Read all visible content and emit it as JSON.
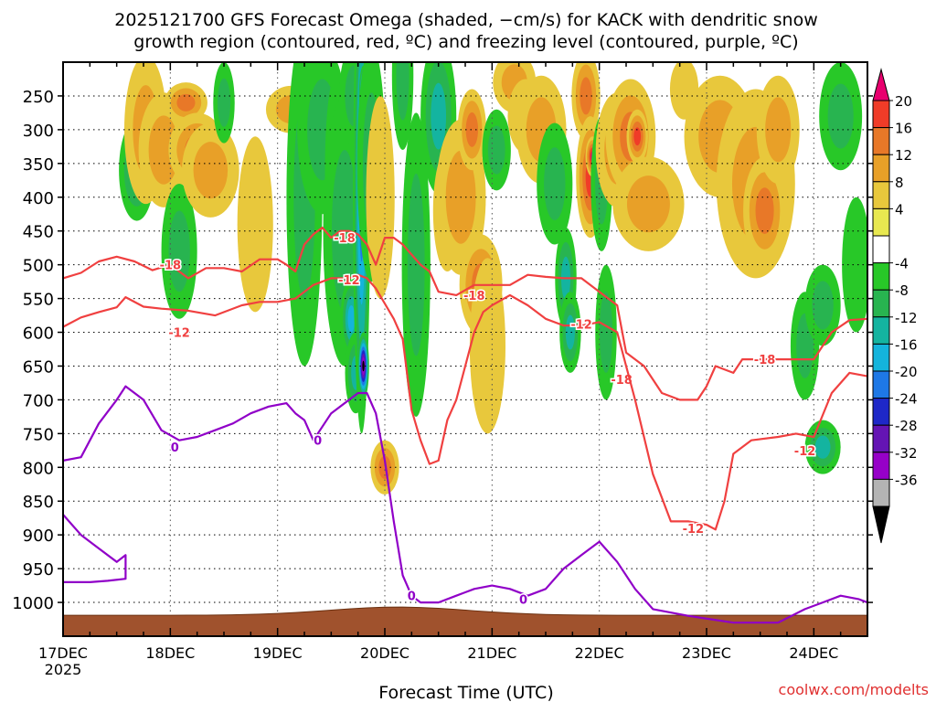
{
  "chart_data": {
    "type": "heatmap",
    "title_line1": "2025121700 GFS Forecast Omega (shaded, −cm/s) for KACK with dendritic snow",
    "title_line2": "growth region (contoured, red, ºC) and freezing level (contoured, purple, ºC)",
    "xlabel": "Forecast Time (UTC)",
    "credit": "coolwx.com/modelts",
    "x_ticks": [
      {
        "hour": 0,
        "label": "17DEC"
      },
      {
        "hour": 24,
        "label": "18DEC"
      },
      {
        "hour": 48,
        "label": "19DEC"
      },
      {
        "hour": 72,
        "label": "20DEC"
      },
      {
        "hour": 96,
        "label": "21DEC"
      },
      {
        "hour": 120,
        "label": "22DEC"
      },
      {
        "hour": 144,
        "label": "23DEC"
      },
      {
        "hour": 168,
        "label": "24DEC"
      }
    ],
    "x_year_label": "2025",
    "xlim": [
      0,
      180
    ],
    "y_levels": [
      250,
      300,
      350,
      400,
      450,
      500,
      550,
      600,
      650,
      700,
      750,
      800,
      850,
      900,
      950,
      1000
    ],
    "ylim": [
      200,
      1050
    ],
    "colorbar": {
      "labels": [
        "20",
        "16",
        "12",
        "8",
        "4",
        "-4",
        "-8",
        "-12",
        "-16",
        "-20",
        "-24",
        "-28",
        "-32",
        "-36"
      ],
      "colors": [
        "#e8006e",
        "#f03c28",
        "#e87828",
        "#e8a028",
        "#e8c83c",
        "#e8e850",
        "#ffffff",
        "#28c828",
        "#28b450",
        "#14b4a0",
        "#14b4dc",
        "#1e78e6",
        "#1e28c8",
        "#6414b4",
        "#9600c8",
        "#b4b4b4",
        "#000000"
      ]
    },
    "omega_blobs": [
      {
        "t": 16.5,
        "p": 360,
        "w": 2.5,
        "h": 150,
        "v": -12
      },
      {
        "t": 18.5,
        "p": 300,
        "w": 3.0,
        "h": 220,
        "v": 8
      },
      {
        "t": 22.5,
        "p": 330,
        "w": 3.5,
        "h": 170,
        "v": 10
      },
      {
        "t": 26,
        "p": 480,
        "w": 2.5,
        "h": 200,
        "v": -8
      },
      {
        "t": 27.5,
        "p": 260,
        "w": 3.0,
        "h": 60,
        "v": 12
      },
      {
        "t": 30,
        "p": 330,
        "w": 4.0,
        "h": 110,
        "v": 14
      },
      {
        "t": 31,
        "p": 350,
        "w": 2.0,
        "h": 60,
        "v": 20
      },
      {
        "t": 33,
        "p": 360,
        "w": 4.0,
        "h": 140,
        "v": 8
      },
      {
        "t": 36,
        "p": 260,
        "w": 1.5,
        "h": 120,
        "v": -8
      },
      {
        "t": 43,
        "p": 440,
        "w": 2.5,
        "h": 260,
        "v": 6
      },
      {
        "t": 51,
        "p": 270,
        "w": 3.5,
        "h": 70,
        "v": 10
      },
      {
        "t": 54,
        "p": 400,
        "w": 2.5,
        "h": 500,
        "v": -8
      },
      {
        "t": 58,
        "p": 300,
        "w": 3.5,
        "h": 250,
        "v": -10
      },
      {
        "t": 61,
        "p": 360,
        "w": 1.5,
        "h": 280,
        "v": -6
      },
      {
        "t": 63,
        "p": 450,
        "w": 3.0,
        "h": 400,
        "v": -10
      },
      {
        "t": 64.5,
        "p": 580,
        "w": 1.5,
        "h": 120,
        "v": -18
      },
      {
        "t": 65,
        "p": 250,
        "w": 2.0,
        "h": 150,
        "v": -8
      },
      {
        "t": 65.5,
        "p": 660,
        "w": 1.5,
        "h": 120,
        "v": -14
      },
      {
        "t": 66.8,
        "p": 400,
        "w": 1.2,
        "h": 700,
        "v": -22
      },
      {
        "t": 67.2,
        "p": 250,
        "w": 0.6,
        "h": 90,
        "v": -36
      },
      {
        "t": 67.2,
        "p": 650,
        "w": 0.8,
        "h": 100,
        "v": -36
      },
      {
        "t": 69,
        "p": 350,
        "w": 2.0,
        "h": 350,
        "v": -10
      },
      {
        "t": 71,
        "p": 400,
        "w": 2.0,
        "h": 300,
        "v": 6
      },
      {
        "t": 72,
        "p": 800,
        "w": 2.0,
        "h": 80,
        "v": 12
      },
      {
        "t": 76,
        "p": 220,
        "w": 1.5,
        "h": 220,
        "v": -10
      },
      {
        "t": 79,
        "p": 500,
        "w": 2.0,
        "h": 450,
        "v": -8
      },
      {
        "t": 84,
        "p": 280,
        "w": 2.5,
        "h": 230,
        "v": -12
      },
      {
        "t": 86,
        "p": 420,
        "w": 2.0,
        "h": 180,
        "v": 6
      },
      {
        "t": 89,
        "p": 400,
        "w": 3.5,
        "h": 230,
        "v": 8
      },
      {
        "t": 91.5,
        "p": 300,
        "w": 2.0,
        "h": 120,
        "v": 12
      },
      {
        "t": 93.5,
        "p": 530,
        "w": 3.0,
        "h": 150,
        "v": 14
      },
      {
        "t": 95,
        "p": 620,
        "w": 2.5,
        "h": 260,
        "v": 6
      },
      {
        "t": 97,
        "p": 330,
        "w": 2.0,
        "h": 120,
        "v": -8
      },
      {
        "t": 101,
        "p": 230,
        "w": 3.0,
        "h": 90,
        "v": 8
      },
      {
        "t": 103.5,
        "p": 280,
        "w": 2.5,
        "h": 110,
        "v": 6
      },
      {
        "t": 107,
        "p": 300,
        "w": 3.5,
        "h": 160,
        "v": 8
      },
      {
        "t": 110,
        "p": 380,
        "w": 2.5,
        "h": 180,
        "v": -8
      },
      {
        "t": 112.5,
        "p": 520,
        "w": 1.5,
        "h": 150,
        "v": -12
      },
      {
        "t": 113.5,
        "p": 600,
        "w": 1.5,
        "h": 120,
        "v": -14
      },
      {
        "t": 117,
        "p": 250,
        "w": 2.0,
        "h": 130,
        "v": 12
      },
      {
        "t": 118,
        "p": 370,
        "w": 2.0,
        "h": 180,
        "v": 16
      },
      {
        "t": 118.5,
        "p": 340,
        "w": 1.0,
        "h": 60,
        "v": 20
      },
      {
        "t": 120.5,
        "p": 380,
        "w": 1.5,
        "h": 200,
        "v": -10
      },
      {
        "t": 121.5,
        "p": 600,
        "w": 1.5,
        "h": 200,
        "v": -8
      },
      {
        "t": 124,
        "p": 330,
        "w": 3.0,
        "h": 170,
        "v": 10
      },
      {
        "t": 127,
        "p": 310,
        "w": 3.5,
        "h": 170,
        "v": 14
      },
      {
        "t": 128.5,
        "p": 310,
        "w": 1.5,
        "h": 80,
        "v": 16
      },
      {
        "t": 131,
        "p": 410,
        "w": 5.0,
        "h": 140,
        "v": 8
      },
      {
        "t": 139,
        "p": 240,
        "w": 2.0,
        "h": 90,
        "v": 4
      },
      {
        "t": 147,
        "p": 310,
        "w": 5.0,
        "h": 180,
        "v": 8
      },
      {
        "t": 155,
        "p": 380,
        "w": 5.5,
        "h": 280,
        "v": 8
      },
      {
        "t": 157,
        "p": 420,
        "w": 3.0,
        "h": 160,
        "v": 12
      },
      {
        "t": 160,
        "p": 300,
        "w": 3.0,
        "h": 160,
        "v": 8
      },
      {
        "t": 166,
        "p": 620,
        "w": 2.0,
        "h": 160,
        "v": -8
      },
      {
        "t": 174,
        "p": 280,
        "w": 3.0,
        "h": 160,
        "v": -8
      },
      {
        "t": 177.5,
        "p": 500,
        "w": 2.0,
        "h": 200,
        "v": -6
      },
      {
        "t": 170,
        "p": 560,
        "w": 2.5,
        "h": 120,
        "v": -10
      },
      {
        "t": 170,
        "p": 770,
        "w": 2.5,
        "h": 80,
        "v": -12
      }
    ],
    "contours": [
      {
        "name": "dgz-18",
        "color": "#f04040",
        "labels": [
          {
            "t": 24,
            "p": 500,
            "text": "-18"
          },
          {
            "t": 63,
            "p": 460,
            "text": "-18"
          },
          {
            "t": 92,
            "p": 545,
            "text": "-18"
          },
          {
            "t": 125,
            "p": 670,
            "text": "-18"
          },
          {
            "t": 157,
            "p": 640,
            "text": "-18"
          }
        ],
        "points": [
          [
            0,
            520
          ],
          [
            4,
            512
          ],
          [
            8,
            495
          ],
          [
            12,
            488
          ],
          [
            16,
            495
          ],
          [
            20,
            508
          ],
          [
            24,
            500
          ],
          [
            28,
            520
          ],
          [
            32,
            505
          ],
          [
            36,
            505
          ],
          [
            40,
            510
          ],
          [
            44,
            492
          ],
          [
            48,
            492
          ],
          [
            50,
            500
          ],
          [
            52,
            510
          ],
          [
            54,
            470
          ],
          [
            56,
            455
          ],
          [
            58,
            445
          ],
          [
            60,
            460
          ],
          [
            62,
            450
          ],
          [
            64,
            450
          ],
          [
            66,
            455
          ],
          [
            68,
            470
          ],
          [
            70,
            500
          ],
          [
            72,
            460
          ],
          [
            74,
            460
          ],
          [
            76,
            470
          ],
          [
            80,
            500
          ],
          [
            82,
            510
          ],
          [
            84,
            540
          ],
          [
            88,
            545
          ],
          [
            92,
            530
          ],
          [
            96,
            530
          ],
          [
            100,
            530
          ],
          [
            104,
            515
          ],
          [
            108,
            518
          ],
          [
            112,
            520
          ],
          [
            116,
            520
          ],
          [
            120,
            540
          ],
          [
            124,
            560
          ],
          [
            126,
            630
          ],
          [
            130,
            650
          ],
          [
            134,
            690
          ],
          [
            138,
            700
          ],
          [
            142,
            700
          ],
          [
            144,
            680
          ],
          [
            146,
            650
          ],
          [
            150,
            660
          ],
          [
            152,
            640
          ],
          [
            156,
            640
          ],
          [
            160,
            640
          ],
          [
            164,
            640
          ],
          [
            168,
            640
          ],
          [
            172,
            600
          ],
          [
            176,
            582
          ],
          [
            180,
            580
          ]
        ]
      },
      {
        "name": "dgz-12",
        "color": "#f04040",
        "labels": [
          {
            "t": 26,
            "p": 600,
            "text": "-12"
          },
          {
            "t": 64,
            "p": 522,
            "text": "-12"
          },
          {
            "t": 116,
            "p": 588,
            "text": "-12"
          },
          {
            "t": 141,
            "p": 890,
            "text": "-12"
          },
          {
            "t": 166,
            "p": 775,
            "text": "-12"
          }
        ],
        "points": [
          [
            0,
            592
          ],
          [
            4,
            578
          ],
          [
            8,
            570
          ],
          [
            12,
            563
          ],
          [
            14,
            548
          ],
          [
            18,
            562
          ],
          [
            22,
            565
          ],
          [
            28,
            568
          ],
          [
            34,
            575
          ],
          [
            40,
            560
          ],
          [
            44,
            555
          ],
          [
            48,
            555
          ],
          [
            52,
            550
          ],
          [
            56,
            530
          ],
          [
            60,
            520
          ],
          [
            64,
            520
          ],
          [
            66,
            515
          ],
          [
            68,
            520
          ],
          [
            70,
            535
          ],
          [
            74,
            580
          ],
          [
            76,
            610
          ],
          [
            78,
            715
          ],
          [
            80,
            760
          ],
          [
            82,
            795
          ],
          [
            84,
            790
          ],
          [
            86,
            730
          ],
          [
            88,
            700
          ],
          [
            90,
            650
          ],
          [
            92,
            600
          ],
          [
            94,
            570
          ],
          [
            96,
            560
          ],
          [
            100,
            545
          ],
          [
            104,
            560
          ],
          [
            108,
            580
          ],
          [
            112,
            590
          ],
          [
            116,
            590
          ],
          [
            120,
            585
          ],
          [
            124,
            600
          ],
          [
            128,
            700
          ],
          [
            132,
            810
          ],
          [
            136,
            880
          ],
          [
            140,
            880
          ],
          [
            144,
            885
          ],
          [
            146,
            892
          ],
          [
            148,
            850
          ],
          [
            150,
            780
          ],
          [
            154,
            760
          ],
          [
            160,
            755
          ],
          [
            164,
            750
          ],
          [
            168,
            755
          ],
          [
            172,
            690
          ],
          [
            176,
            660
          ],
          [
            180,
            665
          ]
        ]
      },
      {
        "name": "freezing-0",
        "color": "#9000c8",
        "labels": [
          {
            "t": 25,
            "p": 770,
            "text": "0"
          },
          {
            "t": 57,
            "p": 760,
            "text": "0"
          },
          {
            "t": 78,
            "p": 990,
            "text": "0"
          },
          {
            "t": 103,
            "p": 995,
            "text": "0"
          }
        ],
        "points": [
          [
            0,
            790
          ],
          [
            4,
            785
          ],
          [
            8,
            735
          ],
          [
            12,
            700
          ],
          [
            14,
            680
          ],
          [
            18,
            700
          ],
          [
            22,
            745
          ],
          [
            26,
            760
          ],
          [
            30,
            755
          ],
          [
            34,
            745
          ],
          [
            38,
            735
          ],
          [
            42,
            720
          ],
          [
            46,
            710
          ],
          [
            50,
            705
          ],
          [
            52,
            720
          ],
          [
            54,
            730
          ],
          [
            56,
            760
          ],
          [
            60,
            720
          ],
          [
            64,
            700
          ],
          [
            66,
            690
          ],
          [
            68,
            690
          ],
          [
            70,
            720
          ],
          [
            72,
            790
          ],
          [
            74,
            880
          ],
          [
            76,
            960
          ],
          [
            78,
            990
          ],
          [
            80,
            1000
          ],
          [
            84,
            1000
          ],
          [
            88,
            990
          ],
          [
            92,
            980
          ],
          [
            96,
            975
          ],
          [
            100,
            980
          ],
          [
            104,
            990
          ],
          [
            108,
            980
          ],
          [
            112,
            950
          ],
          [
            116,
            930
          ],
          [
            120,
            910
          ],
          [
            124,
            940
          ],
          [
            128,
            980
          ],
          [
            132,
            1010
          ],
          [
            140,
            1020
          ],
          [
            150,
            1030
          ],
          [
            160,
            1030
          ],
          [
            166,
            1010
          ],
          [
            170,
            1000
          ],
          [
            174,
            990
          ],
          [
            178,
            995
          ],
          [
            180,
            1000
          ]
        ]
      },
      {
        "name": "freezing-0-lower",
        "color": "#9000c8",
        "labels": [],
        "points": [
          [
            0,
            870
          ],
          [
            2,
            885
          ],
          [
            4,
            900
          ],
          [
            8,
            920
          ],
          [
            12,
            940
          ],
          [
            14,
            930
          ],
          [
            14,
            965
          ],
          [
            10,
            968
          ],
          [
            6,
            970
          ],
          [
            0,
            970
          ]
        ]
      }
    ],
    "terrain": {
      "color": "#a0522d",
      "top_hpa": 1015
    }
  }
}
